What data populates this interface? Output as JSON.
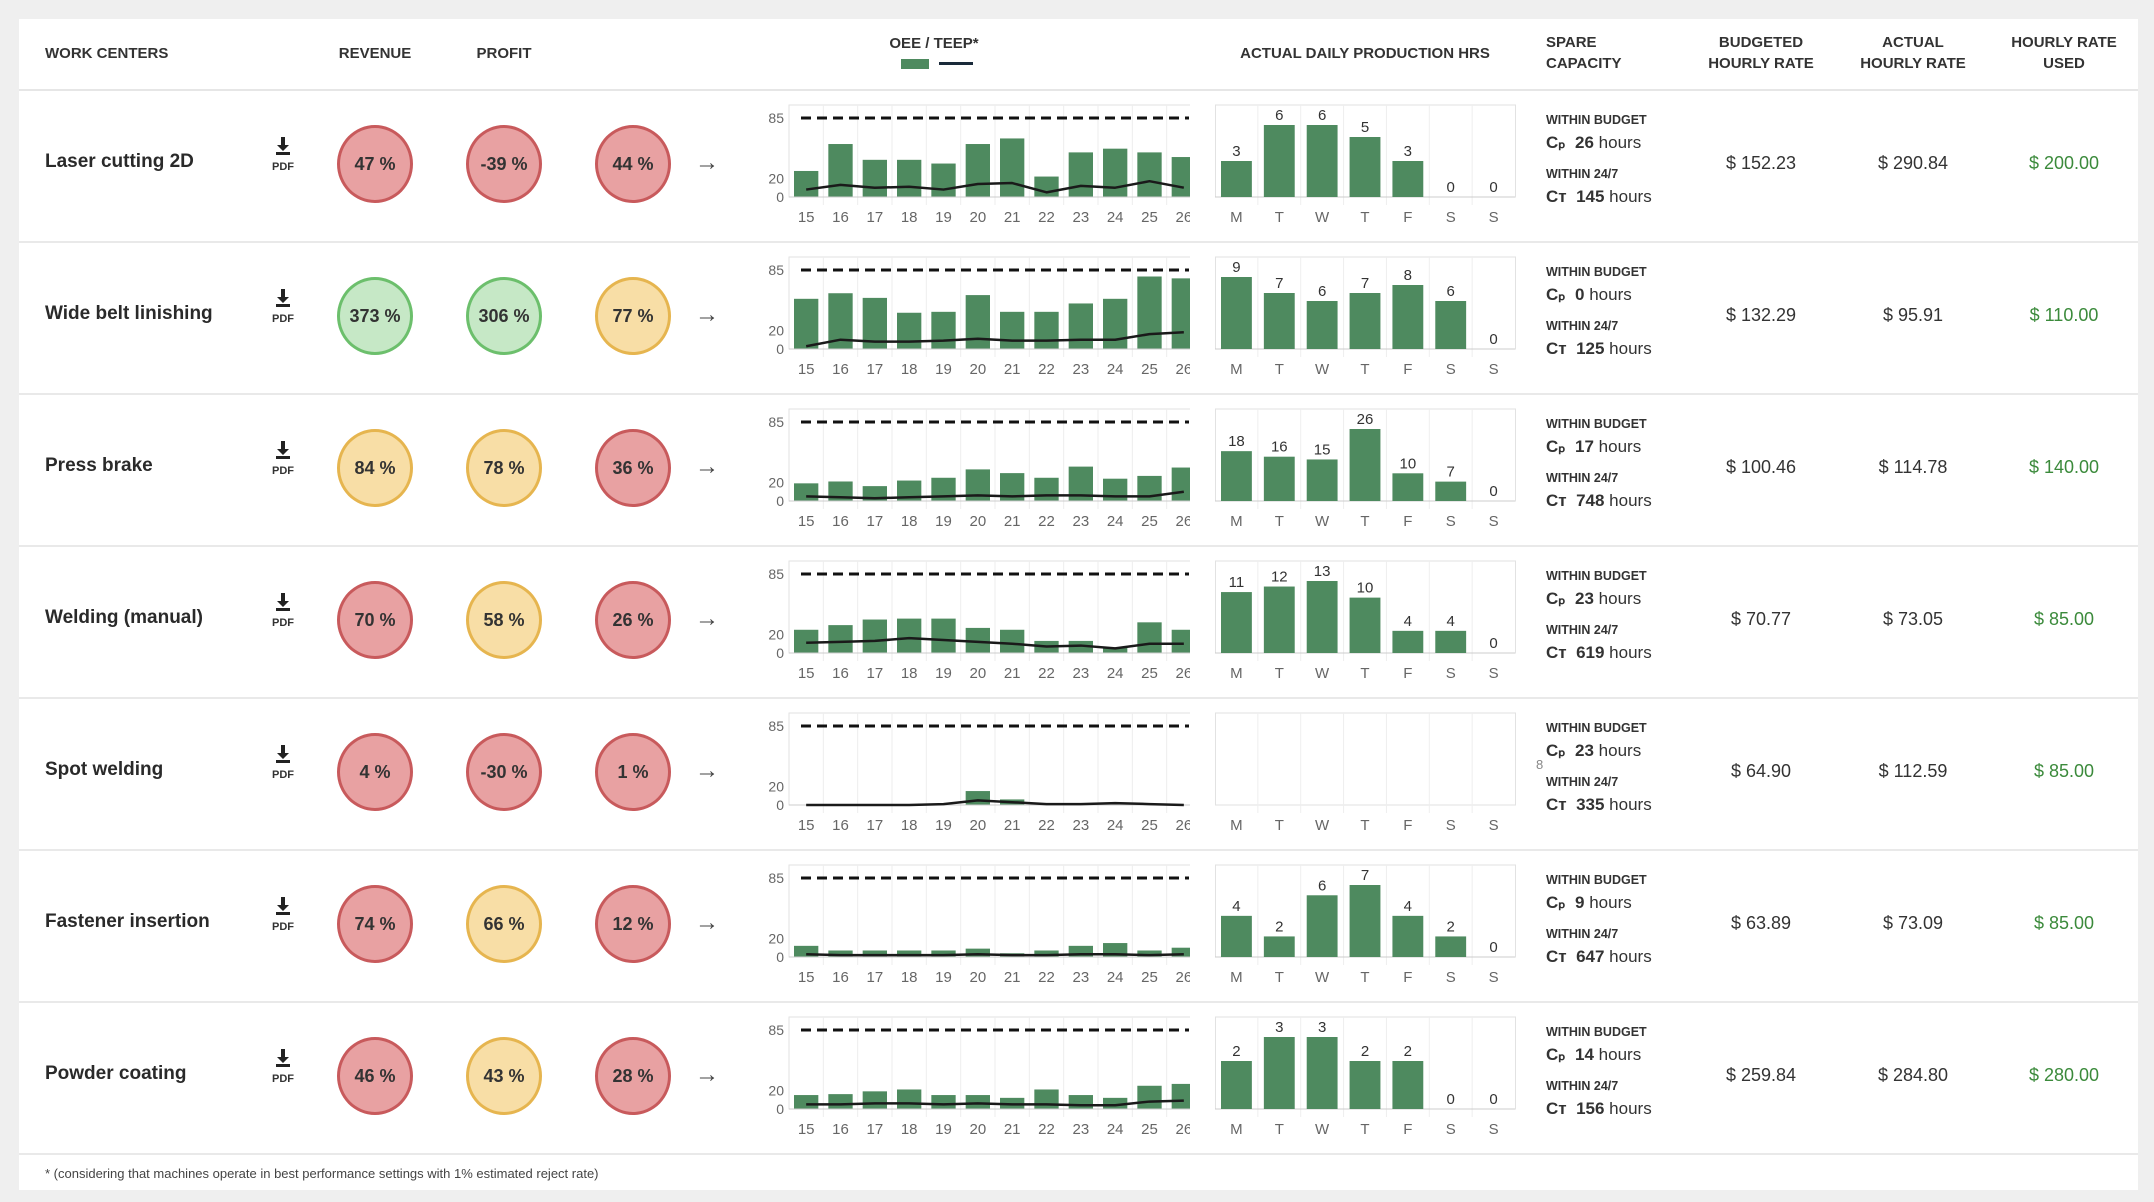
{
  "header": {
    "work_centers": "WORK CENTERS",
    "revenue": "REVENUE",
    "profit": "PROFIT",
    "oee_teep": "OEE / TEEP*",
    "daily": "ACTUAL DAILY PRODUCTION HRS",
    "spare_1": "SPARE",
    "spare_2": "CAPACITY",
    "budgeted_1": "BUDGETED",
    "budgeted_2": "HOURLY RATE",
    "actual_1": "ACTUAL",
    "actual_2": "HOURLY RATE",
    "used_1": "HOURLY RATE",
    "used_2": "USED"
  },
  "colors": {
    "bar": "#4e8a5f",
    "line": "#1a1a1a",
    "red": "#e8a1a2",
    "green": "#c6e8c6",
    "yellow": "#f8dea6",
    "rate_used": "#3b8a3b"
  },
  "icons": {
    "pdf": "download-icon",
    "arrow": "arrow-right-icon"
  },
  "labels": {
    "pdf": "PDF",
    "arrow": "→",
    "within_budget": "WITHIN BUDGET",
    "within_247": "WITHIN 24/7",
    "cp": "Cₚ",
    "ct": "Cᴛ",
    "hours": "hours"
  },
  "chart_axes": {
    "oee_yticks": [
      0,
      20,
      85
    ],
    "oee_target": 85,
    "oee_x": [
      "15",
      "16",
      "17",
      "18",
      "19",
      "20",
      "21",
      "22",
      "23",
      "24",
      "25",
      "26"
    ],
    "days": [
      "M",
      "T",
      "W",
      "T",
      "F",
      "S",
      "S"
    ]
  },
  "rows": [
    {
      "name": "Laser cutting 2D",
      "circles": [
        {
          "text": "47 %",
          "status": "red"
        },
        {
          "text": "-39 %",
          "status": "red"
        },
        {
          "text": "44 %",
          "status": "red"
        }
      ],
      "oee": [
        28,
        57,
        40,
        40,
        36,
        57,
        63,
        22,
        48,
        52,
        48,
        43
      ],
      "teep": [
        8,
        13,
        10,
        11,
        8,
        14,
        15,
        5,
        12,
        10,
        17,
        10
      ],
      "daily": [
        3,
        6,
        6,
        5,
        3,
        0,
        0
      ],
      "cp": "26",
      "ct": "145",
      "budgeted": "$ 152.23",
      "actual": "$ 290.84",
      "used": "$ 200.00"
    },
    {
      "name": "Wide belt linishing",
      "circles": [
        {
          "text": "373 %",
          "status": "green"
        },
        {
          "text": "306 %",
          "status": "green"
        },
        {
          "text": "77 %",
          "status": "yellow"
        }
      ],
      "oee": [
        54,
        60,
        55,
        39,
        40,
        58,
        40,
        40,
        49,
        54,
        78,
        76
      ],
      "teep": [
        3,
        10,
        8,
        8,
        9,
        11,
        9,
        9,
        10,
        10,
        16,
        18
      ],
      "daily": [
        9,
        7,
        6,
        7,
        8,
        6,
        0
      ],
      "cp": "0",
      "ct": "125",
      "budgeted": "$ 132.29",
      "actual": "$ 95.91",
      "used": "$ 110.00"
    },
    {
      "name": "Press brake",
      "circles": [
        {
          "text": "84 %",
          "status": "yellow"
        },
        {
          "text": "78 %",
          "status": "yellow"
        },
        {
          "text": "36 %",
          "status": "red"
        }
      ],
      "oee": [
        19,
        21,
        16,
        22,
        25,
        34,
        30,
        25,
        37,
        24,
        27,
        36
      ],
      "teep": [
        5,
        4,
        3,
        4,
        5,
        6,
        5,
        6,
        6,
        5,
        5,
        10
      ],
      "daily": [
        18,
        16,
        15,
        26,
        10,
        7,
        0
      ],
      "cp": "17",
      "ct": "748",
      "budgeted": "$ 100.46",
      "actual": "$ 114.78",
      "used": "$ 140.00"
    },
    {
      "name": "Welding (manual)",
      "circles": [
        {
          "text": "70 %",
          "status": "red"
        },
        {
          "text": "58 %",
          "status": "yellow"
        },
        {
          "text": "26 %",
          "status": "red"
        }
      ],
      "oee": [
        25,
        30,
        36,
        37,
        37,
        27,
        25,
        13,
        13,
        6,
        33,
        25
      ],
      "teep": [
        11,
        12,
        13,
        16,
        14,
        12,
        10,
        7,
        8,
        5,
        10,
        10
      ],
      "daily": [
        11,
        12,
        13,
        10,
        4,
        4,
        0
      ],
      "cp": "23",
      "ct": "619",
      "budgeted": "$ 70.77",
      "actual": "$ 73.05",
      "used": "$ 85.00"
    },
    {
      "name": "Spot welding",
      "circles": [
        {
          "text": "4 %",
          "status": "red"
        },
        {
          "text": "-30 %",
          "status": "red"
        },
        {
          "text": "1 %",
          "status": "red"
        }
      ],
      "oee": [
        0,
        0,
        0,
        0,
        0,
        15,
        6,
        0,
        0,
        0,
        0,
        0
      ],
      "teep": [
        0,
        0,
        0,
        0,
        1,
        5,
        3,
        1,
        1,
        2,
        1,
        0
      ],
      "daily": null,
      "stray": "8",
      "cp": "23",
      "ct": "335",
      "budgeted": "$ 64.90",
      "actual": "$ 112.59",
      "used": "$ 85.00"
    },
    {
      "name": "Fastener insertion",
      "circles": [
        {
          "text": "74 %",
          "status": "red"
        },
        {
          "text": "66 %",
          "status": "yellow"
        },
        {
          "text": "12 %",
          "status": "red"
        }
      ],
      "oee": [
        12,
        7,
        7,
        7,
        7,
        9,
        4,
        7,
        12,
        15,
        7,
        10
      ],
      "teep": [
        3,
        2,
        2,
        2,
        2,
        3,
        2,
        2,
        3,
        3,
        2,
        3
      ],
      "daily": [
        4,
        2,
        6,
        7,
        4,
        2,
        0
      ],
      "cp": "9",
      "ct": "647",
      "budgeted": "$ 63.89",
      "actual": "$ 73.09",
      "used": "$ 85.00"
    },
    {
      "name": "Powder coating",
      "circles": [
        {
          "text": "46 %",
          "status": "red"
        },
        {
          "text": "43 %",
          "status": "yellow"
        },
        {
          "text": "28 %",
          "status": "red"
        }
      ],
      "oee": [
        15,
        16,
        19,
        21,
        15,
        15,
        12,
        21,
        15,
        12,
        25,
        27
      ],
      "teep": [
        5,
        5,
        6,
        6,
        5,
        6,
        5,
        5,
        4,
        4,
        8,
        9
      ],
      "daily": [
        2,
        3,
        3,
        2,
        2,
        0,
        0
      ],
      "cp": "14",
      "ct": "156",
      "budgeted": "$ 259.84",
      "actual": "$ 284.80",
      "used": "$ 280.00"
    }
  ],
  "footnote": "* (considering that machines operate in best performance settings with 1% estimated reject rate)"
}
